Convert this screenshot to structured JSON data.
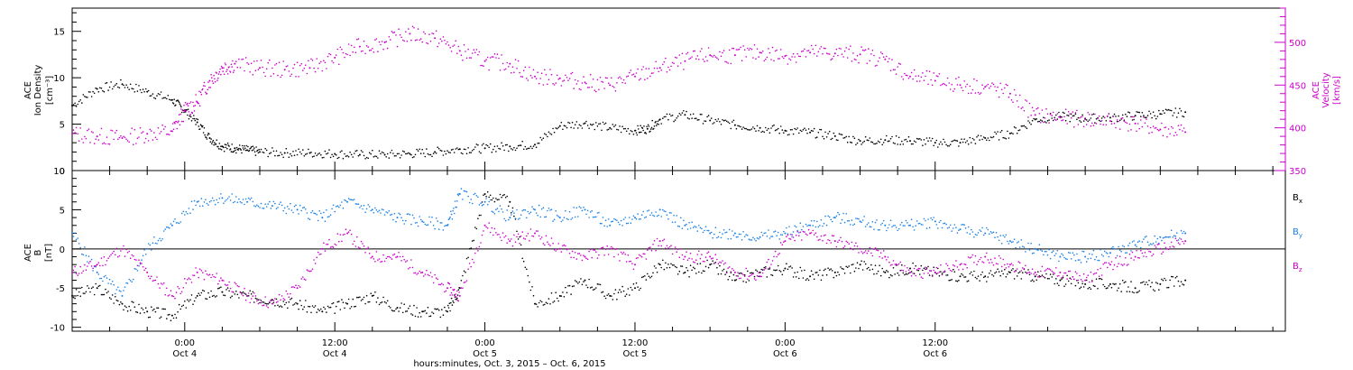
{
  "chart_data": [
    {
      "type": "scatter",
      "panel": "top",
      "ylabel_left": [
        "ACE",
        "Ion Density",
        "[cm⁻³]"
      ],
      "ylabel_right": [
        "ACE",
        "Velocity",
        "[km/s]"
      ],
      "ylim_left": [
        0,
        17.5
      ],
      "yticks_left": [
        0,
        5,
        10,
        15
      ],
      "ylim_right": [
        350,
        540
      ],
      "yticks_right": [
        350,
        400,
        450,
        500
      ],
      "colors": {
        "density": "#000000",
        "velocity": "#cc00cc"
      },
      "series": [
        {
          "axis": "left",
          "color": "#000000",
          "x": [
            -9,
            -7,
            -5,
            -3,
            -1,
            0,
            1,
            2,
            3,
            4,
            5,
            6,
            8,
            10,
            12,
            14,
            16,
            18,
            20,
            22,
            24,
            26,
            28,
            30,
            32,
            34,
            36,
            37,
            38,
            40,
            42,
            44,
            46,
            48,
            50,
            52,
            54,
            56,
            58,
            60,
            62,
            64,
            66,
            68,
            70,
            72,
            74,
            76,
            78,
            80
          ],
          "y": [
            7,
            8.8,
            9.3,
            8.5,
            7.6,
            6.5,
            5.2,
            3.5,
            2.6,
            2.4,
            2.2,
            2.0,
            1.9,
            1.9,
            1.8,
            1.7,
            1.7,
            1.8,
            2.0,
            2.3,
            2.4,
            2.6,
            2.8,
            4.8,
            5.1,
            4.6,
            4.3,
            4.5,
            5.5,
            6.0,
            5.4,
            4.9,
            4.6,
            4.3,
            4.1,
            3.7,
            3.2,
            3.3,
            3.2,
            3.0,
            3.0,
            3.5,
            4.0,
            5.5,
            5.8,
            5.6,
            5.7,
            5.9,
            6.1,
            6.3
          ]
        },
        {
          "axis": "right",
          "color": "#cc00cc",
          "x": [
            -9,
            -7,
            -5,
            -3,
            -1,
            0,
            1,
            2,
            3,
            4,
            6,
            8,
            10,
            12,
            14,
            16,
            18,
            20,
            22,
            24,
            26,
            28,
            30,
            32,
            34,
            36,
            38,
            40,
            42,
            44,
            46,
            48,
            50,
            52,
            54,
            56,
            58,
            60,
            62,
            64,
            66,
            68,
            70,
            72,
            74,
            76,
            78,
            80
          ],
          "y": [
            393,
            390,
            388,
            393,
            396,
            420,
            430,
            455,
            470,
            475,
            470,
            468,
            470,
            482,
            495,
            500,
            510,
            505,
            490,
            478,
            475,
            460,
            458,
            453,
            450,
            460,
            470,
            478,
            485,
            485,
            488,
            484,
            488,
            487,
            486,
            480,
            460,
            455,
            450,
            448,
            440,
            415,
            412,
            410,
            408,
            405,
            398,
            395
          ]
        }
      ]
    },
    {
      "type": "scatter",
      "panel": "bottom",
      "ylabel_left": [
        "ACE",
        "B",
        "[nT]"
      ],
      "ylim": [
        -10.5,
        10
      ],
      "yticks": [
        -10,
        -5,
        0,
        5,
        10
      ],
      "zero_line": true,
      "legend": [
        {
          "label": "B",
          "sub": "x",
          "color": "#000000"
        },
        {
          "label": "B",
          "sub": "y",
          "color": "#1a80e6"
        },
        {
          "label": "B",
          "sub": "z",
          "color": "#cc00cc"
        }
      ],
      "series": [
        {
          "name": "Bx",
          "color": "#000000",
          "x": [
            -9,
            -7,
            -5,
            -3,
            -1,
            1,
            3,
            5,
            7,
            9,
            11,
            13,
            15,
            17,
            19,
            21,
            22,
            24,
            26,
            28,
            30,
            32,
            34,
            36,
            38,
            40,
            42,
            44,
            46,
            48,
            50,
            52,
            54,
            56,
            58,
            60,
            62,
            64,
            66,
            68,
            70,
            72,
            74,
            76,
            78,
            80
          ],
          "y": [
            -6,
            -5,
            -7,
            -8,
            -8.5,
            -6,
            -5.5,
            -6,
            -6.5,
            -7,
            -8,
            -7,
            -6,
            -7.5,
            -8,
            -8,
            -5,
            7,
            6,
            -7,
            -6,
            -4,
            -6,
            -5,
            -2,
            -3,
            -2,
            -4,
            -3,
            -2.5,
            -3.5,
            -3,
            -2,
            -3,
            -2.5,
            -3,
            -3.5,
            -3.5,
            -3,
            -3.5,
            -4,
            -4.5,
            -4.5,
            -5,
            -4.5,
            -4
          ]
        },
        {
          "name": "By",
          "color": "#1a80e6",
          "x": [
            -9,
            -7,
            -5,
            -3,
            -1,
            1,
            3,
            5,
            7,
            9,
            11,
            13,
            15,
            17,
            19,
            21,
            22,
            24,
            26,
            28,
            30,
            32,
            34,
            36,
            38,
            40,
            42,
            44,
            46,
            48,
            50,
            52,
            54,
            56,
            58,
            60,
            62,
            64,
            66,
            68,
            70,
            72,
            74,
            76,
            78,
            80
          ],
          "y": [
            2,
            -3,
            -6,
            0,
            3,
            6,
            6.5,
            6,
            5.5,
            5,
            4,
            6,
            5,
            4,
            3.5,
            3,
            7,
            6,
            4,
            5,
            4,
            5,
            3,
            4,
            5,
            3,
            2,
            2,
            1.5,
            2,
            3,
            4,
            3.5,
            3,
            3,
            3.5,
            2.5,
            2,
            1,
            0,
            -1,
            -1,
            -0.5,
            0.5,
            1.5,
            2
          ]
        },
        {
          "name": "Bz",
          "color": "#cc00cc",
          "x": [
            -9,
            -7,
            -5,
            -3,
            -1,
            1,
            3,
            5,
            7,
            9,
            11,
            13,
            15,
            17,
            19,
            21,
            22,
            24,
            26,
            28,
            30,
            32,
            34,
            36,
            38,
            40,
            42,
            44,
            46,
            48,
            50,
            52,
            54,
            56,
            58,
            60,
            62,
            64,
            66,
            68,
            70,
            72,
            74,
            76,
            78,
            80
          ],
          "y": [
            -3,
            -2,
            0,
            -3,
            -6,
            -3,
            -4,
            -6,
            -7,
            -5,
            0,
            2,
            -1,
            -1,
            -3,
            -5,
            -6,
            3,
            1,
            2,
            0,
            -1,
            0,
            -2,
            1,
            -1,
            -1,
            -3,
            -3.5,
            1,
            2,
            1,
            0,
            -1,
            -3,
            -3,
            -2,
            -1,
            -2,
            -3,
            -3,
            -4,
            -2,
            -1,
            0,
            1
          ]
        }
      ]
    }
  ],
  "x_axis": {
    "range_hours": [
      -9,
      88
    ],
    "ticks": [
      {
        "hour": 0,
        "label1": "0:00",
        "label2": "Oct 4"
      },
      {
        "hour": 12,
        "label1": "12:00",
        "label2": "Oct 4"
      },
      {
        "hour": 24,
        "label1": "0:00",
        "label2": "Oct 5"
      },
      {
        "hour": 36,
        "label1": "12:00",
        "label2": "Oct 5"
      },
      {
        "hour": 48,
        "label1": "0:00",
        "label2": "Oct 6"
      },
      {
        "hour": 60,
        "label1": "12:00",
        "label2": "Oct 6"
      }
    ],
    "title": "hours:minutes, Oct.  3, 2015 – Oct.  6, 2015"
  }
}
